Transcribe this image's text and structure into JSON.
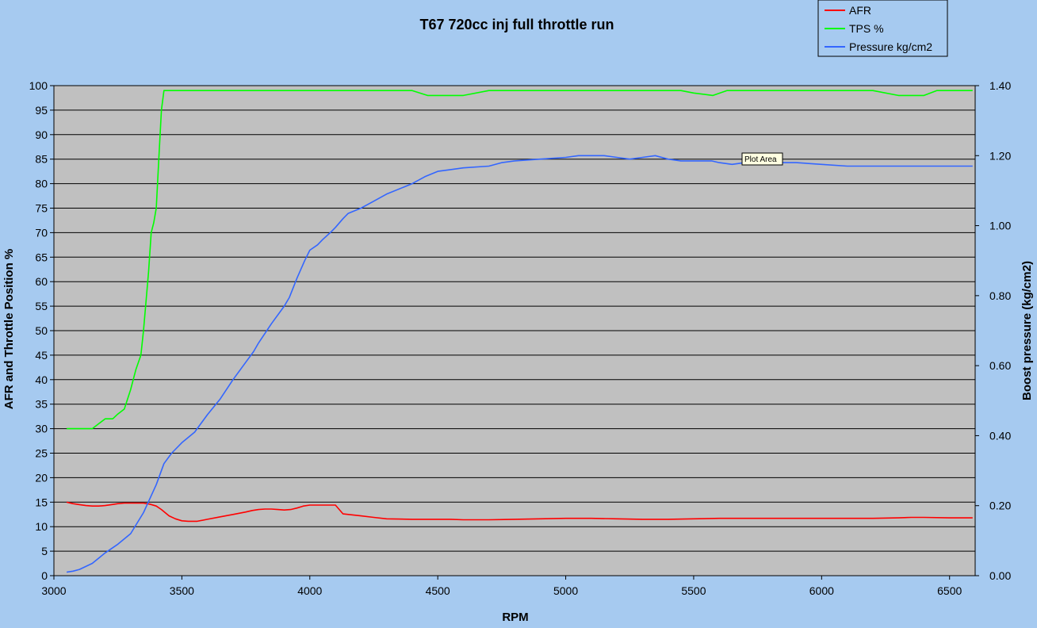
{
  "chart_data": {
    "type": "line",
    "title": "T67 720cc inj full throttle run",
    "xlabel": "RPM",
    "ylabel": "AFR and Throttle Position %",
    "y2label": "Boost pressure (kg/cm2)",
    "xlim": [
      3000,
      6600
    ],
    "ylim": [
      0,
      100
    ],
    "y2lim": [
      0,
      1.4
    ],
    "x_ticks": [
      "3000",
      "3500",
      "4000",
      "4500",
      "5000",
      "5500",
      "6000",
      "6500"
    ],
    "y_ticks": [
      "0",
      "5",
      "10",
      "15",
      "20",
      "25",
      "30",
      "35",
      "40",
      "45",
      "50",
      "55",
      "60",
      "65",
      "70",
      "75",
      "80",
      "85",
      "90",
      "95",
      "100"
    ],
    "y2_ticks": [
      "0.00",
      "0.20",
      "0.40",
      "0.60",
      "0.80",
      "1.00",
      "1.20",
      "1.40"
    ],
    "grid": "horizontal",
    "legend_position": "top-right",
    "tooltip": "Plot Area",
    "series": [
      {
        "name": "AFR",
        "color": "#ff0000",
        "axis": "left",
        "x": [
          3050,
          3075,
          3100,
          3125,
          3150,
          3175,
          3200,
          3225,
          3250,
          3275,
          3300,
          3325,
          3350,
          3375,
          3400,
          3420,
          3450,
          3475,
          3500,
          3525,
          3560,
          3600,
          3650,
          3700,
          3750,
          3775,
          3800,
          3825,
          3850,
          3875,
          3900,
          3925,
          3950,
          3975,
          4000,
          4030,
          4050,
          4075,
          4100,
          4130,
          4200,
          4250,
          4300,
          4400,
          4500,
          4550,
          4600,
          4700,
          4800,
          4900,
          5000,
          5100,
          5200,
          5300,
          5400,
          5500,
          5600,
          5700,
          5800,
          5900,
          6000,
          6100,
          6200,
          6300,
          6350,
          6400,
          6500,
          6590
        ],
        "values": [
          15.0,
          14.7,
          14.5,
          14.3,
          14.2,
          14.2,
          14.3,
          14.5,
          14.7,
          14.8,
          14.8,
          14.8,
          14.8,
          14.6,
          14.2,
          13.5,
          12.2,
          11.6,
          11.2,
          11.1,
          11.1,
          11.5,
          12.0,
          12.5,
          13.0,
          13.3,
          13.5,
          13.6,
          13.6,
          13.5,
          13.4,
          13.5,
          13.8,
          14.2,
          14.4,
          14.4,
          14.4,
          14.4,
          14.4,
          12.6,
          12.2,
          11.9,
          11.6,
          11.5,
          11.5,
          11.5,
          11.4,
          11.4,
          11.5,
          11.6,
          11.7,
          11.7,
          11.6,
          11.5,
          11.5,
          11.6,
          11.7,
          11.7,
          11.7,
          11.7,
          11.7,
          11.7,
          11.7,
          11.8,
          11.9,
          11.9,
          11.8,
          11.8
        ]
      },
      {
        "name": "TPS %",
        "color": "#00ff00",
        "axis": "left",
        "x": [
          3050,
          3100,
          3150,
          3175,
          3200,
          3230,
          3250,
          3275,
          3300,
          3320,
          3340,
          3350,
          3360,
          3370,
          3380,
          3390,
          3400,
          3410,
          3420,
          3430,
          3440,
          3500,
          3600,
          3700,
          3800,
          3900,
          4000,
          4100,
          4200,
          4300,
          4400,
          4460,
          4500,
          4600,
          4700,
          4800,
          4900,
          5000,
          5100,
          5200,
          5300,
          5400,
          5450,
          5500,
          5575,
          5630,
          5700,
          5800,
          5900,
          6000,
          6100,
          6200,
          6300,
          6400,
          6450,
          6500,
          6590
        ],
        "values": [
          30,
          30,
          30,
          31,
          32,
          32,
          33,
          34,
          38,
          42,
          45,
          50,
          56,
          62,
          70,
          72,
          75,
          85,
          95,
          99,
          99,
          99,
          99,
          99,
          99,
          99,
          99,
          99,
          99,
          99,
          99,
          98,
          98,
          98,
          99,
          99,
          99,
          99,
          99,
          99,
          99,
          99,
          99,
          98.5,
          98,
          99,
          99,
          99,
          99,
          99,
          99,
          99,
          98,
          98,
          99,
          99,
          99
        ]
      },
      {
        "name": "Pressure kg/cm2",
        "color": "#3366ff",
        "axis": "right",
        "x": [
          3050,
          3075,
          3100,
          3150,
          3200,
          3250,
          3300,
          3350,
          3400,
          3430,
          3460,
          3500,
          3550,
          3600,
          3650,
          3700,
          3750,
          3780,
          3800,
          3850,
          3900,
          3920,
          3950,
          3980,
          4000,
          4030,
          4050,
          4080,
          4100,
          4130,
          4150,
          4200,
          4250,
          4300,
          4400,
          4450,
          4500,
          4550,
          4600,
          4700,
          4750,
          4800,
          4900,
          5000,
          5050,
          5100,
          5150,
          5200,
          5250,
          5300,
          5350,
          5400,
          5450,
          5500,
          5570,
          5600,
          5650,
          5700,
          5800,
          5900,
          6000,
          6100,
          6200,
          6300,
          6400,
          6500,
          6590
        ],
        "values": [
          0.01,
          0.013,
          0.018,
          0.035,
          0.065,
          0.09,
          0.12,
          0.18,
          0.26,
          0.32,
          0.35,
          0.38,
          0.41,
          0.46,
          0.505,
          0.56,
          0.61,
          0.64,
          0.665,
          0.72,
          0.77,
          0.795,
          0.85,
          0.9,
          0.93,
          0.945,
          0.96,
          0.98,
          0.995,
          1.02,
          1.035,
          1.05,
          1.07,
          1.09,
          1.12,
          1.14,
          1.155,
          1.16,
          1.165,
          1.17,
          1.18,
          1.185,
          1.19,
          1.195,
          1.2,
          1.2,
          1.2,
          1.195,
          1.19,
          1.195,
          1.2,
          1.19,
          1.185,
          1.185,
          1.185,
          1.18,
          1.175,
          1.18,
          1.18,
          1.18,
          1.175,
          1.17,
          1.17,
          1.17,
          1.17,
          1.17,
          1.17
        ]
      }
    ]
  }
}
